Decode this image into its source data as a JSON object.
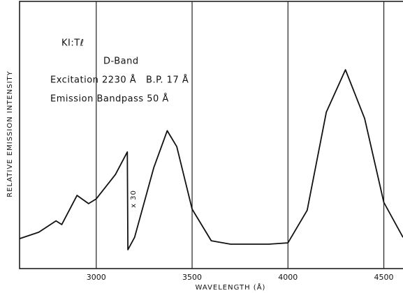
{
  "chart_data": {
    "type": "line",
    "xlabel": "WAVELENGTH (Å)",
    "ylabel": "RELATIVE EMISSION INTENSITY",
    "annotations": [
      "KI:Tℓ",
      "D-Band",
      "Excitation 2230 Å   B.P. 17 Å",
      "Emission Bandpass 50 Å",
      "x 30"
    ],
    "x": [
      2600,
      2700,
      2790,
      2820,
      2900,
      2960,
      3000,
      3100,
      3162,
      3165,
      3200,
      3300,
      3370,
      3420,
      3500,
      3600,
      3700,
      3900,
      4000,
      4100,
      4200,
      4300,
      4400,
      4500,
      4600
    ],
    "series": [
      {
        "color": "#111111",
        "values": [
          11.3,
          13.7,
          18,
          16.6,
          27.6,
          24.5,
          26.3,
          35.5,
          44,
          7.1,
          11.8,
          38,
          52,
          46,
          22.4,
          10.5,
          9.2,
          9.2,
          9.7,
          22,
          59,
          75,
          56.6,
          25,
          11.8
        ]
      }
    ],
    "xlim": [
      2600,
      4600
    ],
    "xticks": [
      3000,
      3500,
      4000,
      4500
    ],
    "ylim": [
      0,
      100
    ],
    "grid": true
  }
}
